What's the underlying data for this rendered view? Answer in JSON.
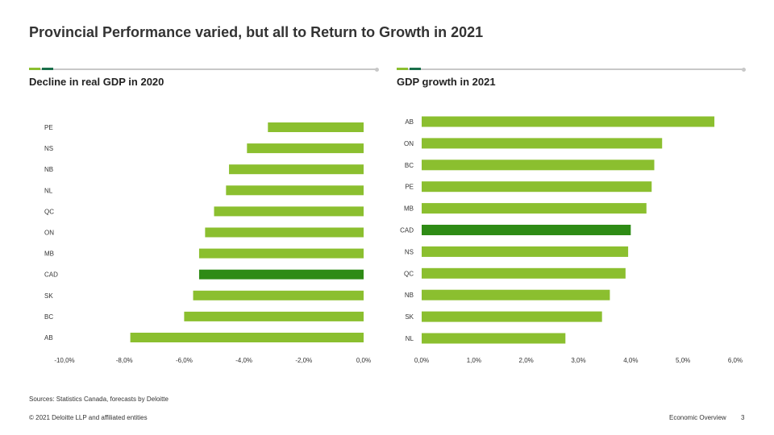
{
  "title": "Provincial Performance varied, but all to Return to Growth in 2021",
  "colors": {
    "bar": "#8bbf2f",
    "highlight": "#2e8b15",
    "rule": "#c8c8c8",
    "accent_light": "#8bbf2f",
    "accent_dark": "#1a6f4a"
  },
  "chart_data": [
    {
      "type": "bar",
      "orientation": "horizontal",
      "title": "Decline in real GDP in 2020",
      "categories": [
        "PE",
        "NS",
        "NB",
        "NL",
        "QC",
        "ON",
        "MB",
        "CAD",
        "SK",
        "BC",
        "AB"
      ],
      "values": [
        -3.2,
        -3.9,
        -4.5,
        -4.6,
        -5.0,
        -5.3,
        -5.5,
        -5.5,
        -5.7,
        -6.0,
        -7.8
      ],
      "highlight": "CAD",
      "xlim": [
        -10,
        0
      ],
      "ticks": [
        "-10,0%",
        "-8,0%",
        "-6,0%",
        "-4,0%",
        "-2,0%",
        "0,0%"
      ],
      "legend": "none"
    },
    {
      "type": "bar",
      "orientation": "horizontal",
      "title": "GDP growth in 2021",
      "categories": [
        "AB",
        "ON",
        "BC",
        "PE",
        "MB",
        "CAD",
        "NS",
        "QC",
        "NB",
        "SK",
        "NL"
      ],
      "values": [
        5.6,
        4.6,
        4.45,
        4.4,
        4.3,
        4.0,
        3.95,
        3.9,
        3.6,
        3.45,
        2.75
      ],
      "highlight": "CAD",
      "xlim": [
        0,
        6
      ],
      "ticks": [
        "0,0%",
        "1,0%",
        "2,0%",
        "3,0%",
        "4,0%",
        "5,0%",
        "6,0%"
      ],
      "legend": "none"
    }
  ],
  "footer": {
    "sources": "Sources: Statistics Canada, forecasts by Deloitte",
    "copyright": "© 2021 Deloitte LLP and affiliated entities",
    "section": "Economic Overview",
    "page": "3"
  }
}
